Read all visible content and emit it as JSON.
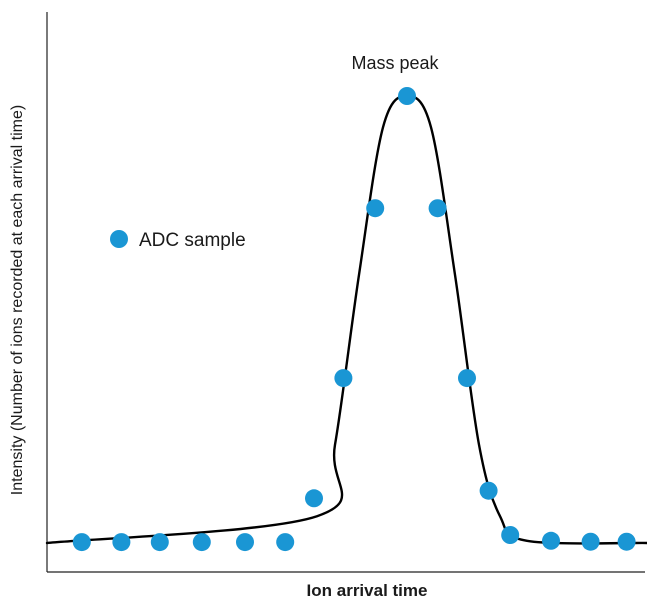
{
  "chart_data": {
    "type": "scatter",
    "title": "",
    "xlabel": "Ion arrival time",
    "ylabel": "Intensity (Number of ions recorded at each arrival time)",
    "xlim": [
      0,
      1
    ],
    "ylim": [
      0,
      1
    ],
    "grid": false,
    "ticks": false,
    "legend": {
      "position": "left",
      "entries": [
        "ADC sample"
      ]
    },
    "colors": {
      "sample": "#1a96d4",
      "curve": "#000000"
    },
    "annotations": [
      {
        "text": "Mass peak",
        "x": 0.585,
        "y": 1.1
      }
    ],
    "series": [
      {
        "name": "ADC sample",
        "kind": "points",
        "x": [
          0.058,
          0.124,
          0.188,
          0.258,
          0.33,
          0.397,
          0.445,
          0.494,
          0.547,
          0.6,
          0.651,
          0.7,
          0.736,
          0.772,
          0.84,
          0.906,
          0.966
        ],
        "y": [
          0.002,
          0.002,
          0.002,
          0.002,
          0.002,
          0.002,
          0.1,
          0.369,
          0.749,
          1.0,
          0.749,
          0.369,
          0.117,
          0.018,
          0.005,
          0.003,
          0.003
        ]
      },
      {
        "name": "",
        "kind": "line",
        "x": [
          0.0,
          0.45,
          0.48,
          0.52,
          0.56,
          0.6,
          0.64,
          0.68,
          0.72,
          0.755,
          0.8,
          1.0
        ],
        "y": [
          0.0,
          0.06,
          0.22,
          0.6,
          0.93,
          1.0,
          0.93,
          0.6,
          0.22,
          0.06,
          0.005,
          0.0
        ]
      }
    ]
  }
}
